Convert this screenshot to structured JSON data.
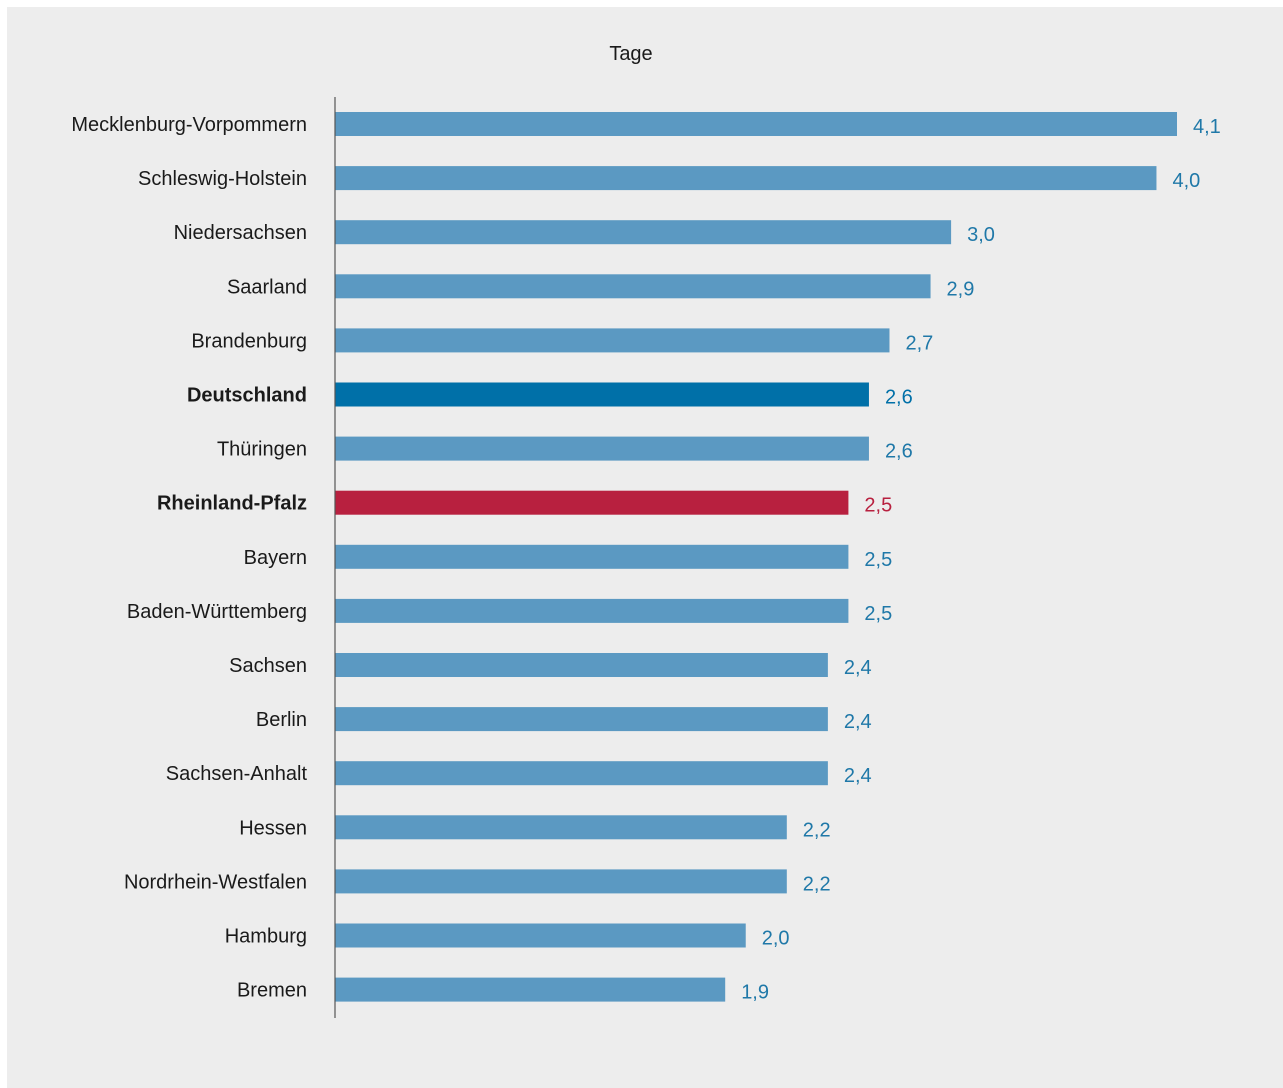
{
  "chart_data": {
    "type": "bar",
    "orientation": "horizontal",
    "unit_label": "Tage",
    "categories": [
      "Mecklenburg-Vorpommern",
      "Schleswig-Holstein",
      "Niedersachsen",
      "Saarland",
      "Brandenburg",
      "Deutschland",
      "Thüringen",
      "Rheinland-Pfalz",
      "Bayern",
      "Baden-Württemberg",
      "Sachsen",
      "Berlin",
      "Sachsen-Anhalt",
      "Hessen",
      "Nordrhein-Westfalen",
      "Hamburg",
      "Bremen"
    ],
    "values": [
      4.1,
      4.0,
      3.0,
      2.9,
      2.7,
      2.6,
      2.6,
      2.5,
      2.5,
      2.5,
      2.4,
      2.4,
      2.4,
      2.2,
      2.2,
      2.0,
      1.9
    ],
    "value_labels": [
      "4,1",
      "4,0",
      "3,0",
      "2,9",
      "2,7",
      "2,6",
      "2,6",
      "2,5",
      "2,5",
      "2,5",
      "2,4",
      "2,4",
      "2,4",
      "2,2",
      "2,2",
      "2,0",
      "1,9"
    ],
    "highlights": {
      "Deutschland": "#0070a8",
      "Rheinland-Pfalz": "#b8203f"
    },
    "xlim": [
      0,
      4.1
    ],
    "grid": false,
    "colors": {
      "bar": "#5b99c2",
      "value_text": "#1f78a8",
      "label_text": "#1a1a1a",
      "axis": "#555555",
      "background": "#ededed"
    }
  }
}
